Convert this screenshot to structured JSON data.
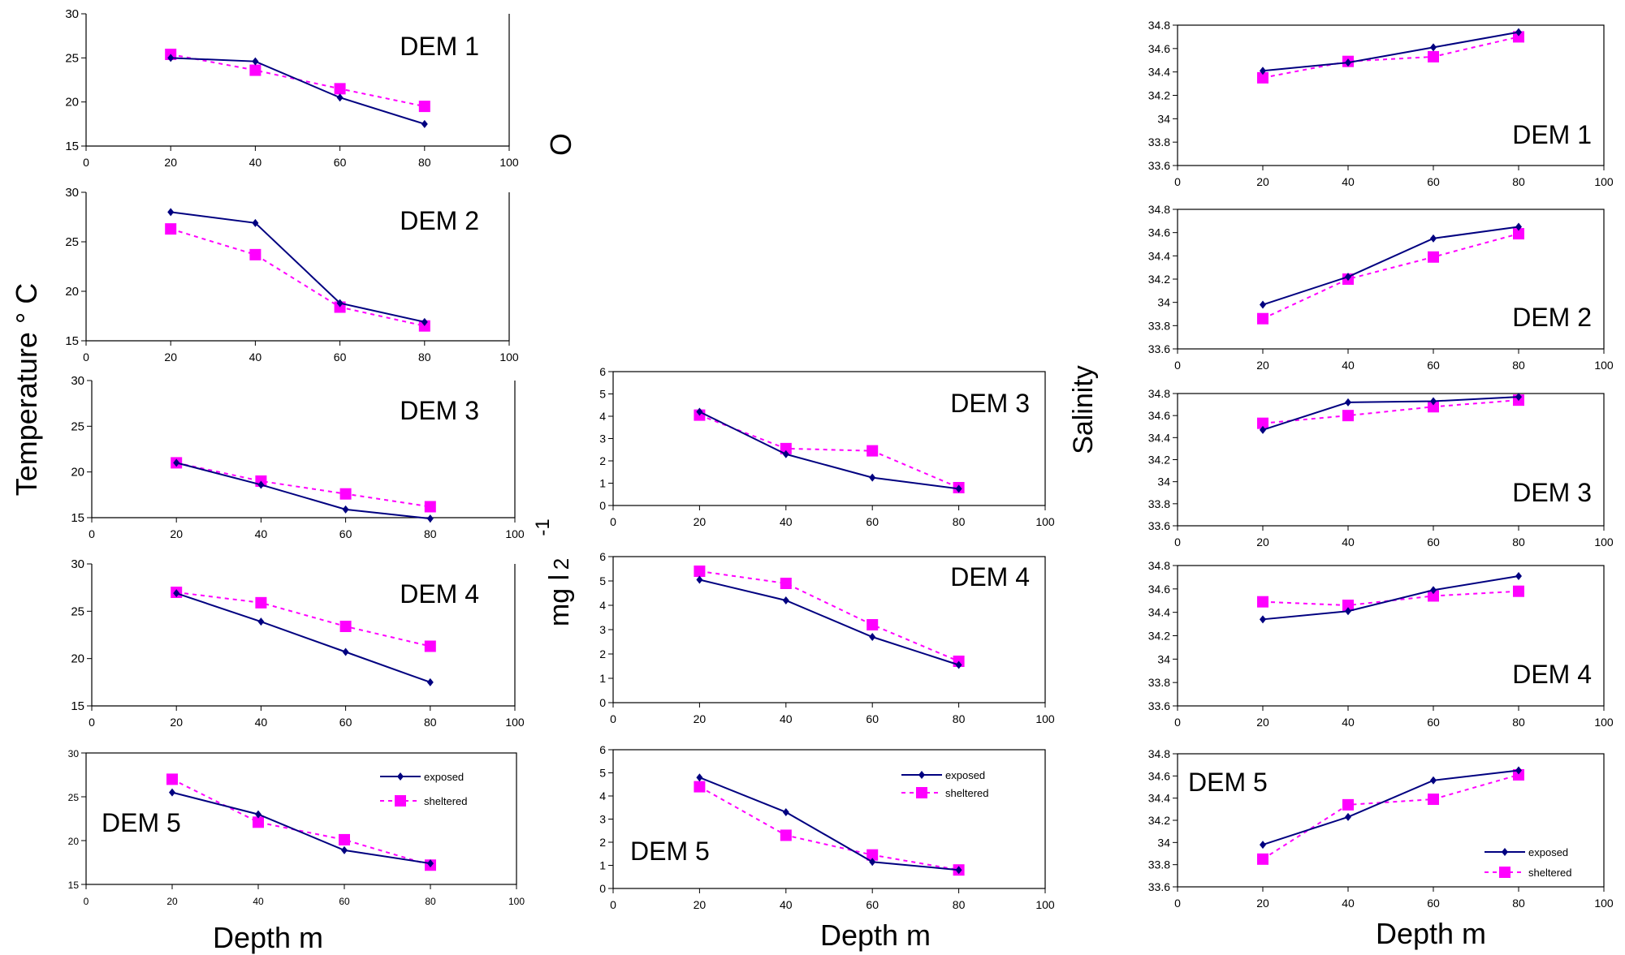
{
  "labels": {
    "temp_ylabel": "Temperature ° C",
    "oxygen_ylabel": "O",
    "oxygen_ylabel_2": "2",
    "oxygen_ylabel_unit": "mg l",
    "oxygen_ylabel_sup": "-1",
    "salinity_ylabel": "Salinity",
    "xlabel_temp": "Depth m",
    "xlabel_oxygen": "Depth m",
    "xlabel_salinity": "Depth m"
  },
  "colors": {
    "exposed": "#000080",
    "sheltered": "#ff00ff"
  },
  "chart_data": [
    {
      "id": "temp-dem1",
      "type": "line",
      "title": "DEM 1",
      "xlim": [
        0,
        100
      ],
      "ylim": [
        15,
        30
      ],
      "xticks": [
        "0",
        "20",
        "40",
        "60",
        "80",
        "100"
      ],
      "yticks": [
        "15",
        "20",
        "25",
        "30"
      ],
      "x": [
        20,
        40,
        60,
        80
      ],
      "series": [
        {
          "key": "exposed",
          "values": [
            25,
            24.6,
            20.5,
            17.5
          ]
        },
        {
          "key": "sheltered",
          "values": [
            25.4,
            23.6,
            21.5,
            19.5
          ]
        }
      ]
    },
    {
      "id": "temp-dem2",
      "type": "line",
      "title": "DEM 2",
      "xlim": [
        0,
        100
      ],
      "ylim": [
        15,
        30
      ],
      "xticks": [
        "0",
        "20",
        "40",
        "60",
        "80",
        "100"
      ],
      "yticks": [
        "15",
        "20",
        "25",
        "30"
      ],
      "x": [
        20,
        40,
        60,
        80
      ],
      "series": [
        {
          "key": "exposed",
          "values": [
            28,
            26.9,
            18.8,
            16.9
          ]
        },
        {
          "key": "sheltered",
          "values": [
            26.3,
            23.7,
            18.4,
            16.5
          ]
        }
      ]
    },
    {
      "id": "temp-dem3",
      "type": "line",
      "title": "DEM 3",
      "xlim": [
        0,
        100
      ],
      "ylim": [
        15,
        30
      ],
      "xticks": [
        "0",
        "20",
        "40",
        "60",
        "80",
        "100"
      ],
      "yticks": [
        "15",
        "20",
        "25",
        "30"
      ],
      "x": [
        20,
        40,
        60,
        80
      ],
      "series": [
        {
          "key": "exposed",
          "values": [
            21,
            18.6,
            15.9,
            14.9
          ]
        },
        {
          "key": "sheltered",
          "values": [
            21,
            19,
            17.6,
            16.2
          ]
        }
      ]
    },
    {
      "id": "temp-dem4",
      "type": "line",
      "title": "DEM 4",
      "xlim": [
        0,
        100
      ],
      "ylim": [
        15,
        30
      ],
      "xticks": [
        "0",
        "20",
        "40",
        "60",
        "80",
        "100"
      ],
      "yticks": [
        "15",
        "20",
        "25",
        "30"
      ],
      "x": [
        20,
        40,
        60,
        80
      ],
      "series": [
        {
          "key": "exposed",
          "values": [
            26.9,
            23.9,
            20.7,
            17.5
          ]
        },
        {
          "key": "sheltered",
          "values": [
            27,
            25.9,
            23.4,
            21.3
          ]
        }
      ]
    },
    {
      "id": "temp-dem5",
      "type": "line",
      "title": "DEM 5",
      "xlim": [
        0,
        100
      ],
      "ylim": [
        15,
        30
      ],
      "xticks": [
        "0",
        "20",
        "40",
        "60",
        "80",
        "100"
      ],
      "yticks": [
        "15",
        "20",
        "25",
        "30"
      ],
      "x": [
        20,
        40,
        60,
        80
      ],
      "legend": {
        "position": "top-right",
        "entries": [
          "exposed",
          "sheltered"
        ]
      },
      "series": [
        {
          "key": "exposed",
          "name": "exposed",
          "values": [
            25.5,
            23,
            18.9,
            17.4
          ]
        },
        {
          "key": "sheltered",
          "name": "sheltered",
          "values": [
            27,
            22.1,
            20.1,
            17.2
          ]
        }
      ]
    },
    {
      "id": "oxy-dem3",
      "type": "line",
      "title": "DEM 3",
      "xlim": [
        0,
        100
      ],
      "ylim": [
        0,
        6
      ],
      "xticks": [
        "0",
        "20",
        "40",
        "60",
        "80",
        "100"
      ],
      "yticks": [
        "0",
        "1",
        "2",
        "3",
        "4",
        "5",
        "6"
      ],
      "x": [
        20,
        40,
        60,
        80
      ],
      "series": [
        {
          "key": "exposed",
          "values": [
            4.2,
            2.3,
            1.25,
            0.75
          ]
        },
        {
          "key": "sheltered",
          "values": [
            4.05,
            2.55,
            2.45,
            0.8
          ]
        }
      ]
    },
    {
      "id": "oxy-dem4",
      "type": "line",
      "title": "DEM 4",
      "xlim": [
        0,
        100
      ],
      "ylim": [
        0,
        6
      ],
      "xticks": [
        "0",
        "20",
        "40",
        "60",
        "80",
        "100"
      ],
      "yticks": [
        "0",
        "1",
        "2",
        "3",
        "4",
        "5",
        "6"
      ],
      "x": [
        20,
        40,
        60,
        80
      ],
      "series": [
        {
          "key": "exposed",
          "values": [
            5.05,
            4.2,
            2.7,
            1.55
          ]
        },
        {
          "key": "sheltered",
          "values": [
            5.4,
            4.9,
            3.2,
            1.7
          ]
        }
      ]
    },
    {
      "id": "oxy-dem5",
      "type": "line",
      "title": "DEM 5",
      "xlim": [
        0,
        100
      ],
      "ylim": [
        0,
        6
      ],
      "xticks": [
        "0",
        "20",
        "40",
        "60",
        "80",
        "100"
      ],
      "yticks": [
        "0",
        "1",
        "2",
        "3",
        "4",
        "5",
        "6"
      ],
      "x": [
        20,
        40,
        60,
        80
      ],
      "legend": {
        "position": "top-right",
        "entries": [
          "exposed",
          "sheltered"
        ]
      },
      "series": [
        {
          "key": "exposed",
          "name": "exposed",
          "values": [
            4.8,
            3.3,
            1.15,
            0.8
          ]
        },
        {
          "key": "sheltered",
          "name": "sheltered",
          "values": [
            4.4,
            2.3,
            1.45,
            0.8
          ]
        }
      ]
    },
    {
      "id": "sal-dem1",
      "type": "line",
      "title": "DEM 1",
      "xlim": [
        0,
        100
      ],
      "ylim": [
        33.6,
        34.8
      ],
      "xticks": [
        "0",
        "20",
        "40",
        "60",
        "80",
        "100"
      ],
      "yticks": [
        "33.6",
        "33.8",
        "34",
        "34.2",
        "34.4",
        "34.6",
        "34.8"
      ],
      "x": [
        20,
        40,
        60,
        80
      ],
      "series": [
        {
          "key": "exposed",
          "values": [
            34.41,
            34.48,
            34.61,
            34.74
          ]
        },
        {
          "key": "sheltered",
          "values": [
            34.35,
            34.49,
            34.53,
            34.7
          ]
        }
      ]
    },
    {
      "id": "sal-dem2",
      "type": "line",
      "title": "DEM 2",
      "xlim": [
        0,
        100
      ],
      "ylim": [
        33.6,
        34.8
      ],
      "xticks": [
        "0",
        "20",
        "40",
        "60",
        "80",
        "100"
      ],
      "yticks": [
        "33.6",
        "33.8",
        "34",
        "34.2",
        "34.4",
        "34.6",
        "34.8"
      ],
      "x": [
        20,
        40,
        60,
        80
      ],
      "series": [
        {
          "key": "exposed",
          "values": [
            33.98,
            34.22,
            34.55,
            34.65
          ]
        },
        {
          "key": "sheltered",
          "values": [
            33.86,
            34.2,
            34.39,
            34.59
          ]
        }
      ]
    },
    {
      "id": "sal-dem3",
      "type": "line",
      "title": "DEM 3",
      "xlim": [
        0,
        100
      ],
      "ylim": [
        33.6,
        34.8
      ],
      "xticks": [
        "0",
        "20",
        "40",
        "60",
        "80",
        "100"
      ],
      "yticks": [
        "33.6",
        "33.8",
        "34",
        "34.2",
        "34.4",
        "34.6",
        "34.8"
      ],
      "x": [
        20,
        40,
        60,
        80
      ],
      "series": [
        {
          "key": "exposed",
          "values": [
            34.47,
            34.72,
            34.73,
            34.77
          ]
        },
        {
          "key": "sheltered",
          "values": [
            34.53,
            34.6,
            34.68,
            34.74
          ]
        }
      ]
    },
    {
      "id": "sal-dem4",
      "type": "line",
      "title": "DEM 4",
      "xlim": [
        0,
        100
      ],
      "ylim": [
        33.6,
        34.8
      ],
      "xticks": [
        "0",
        "20",
        "40",
        "60",
        "80",
        "100"
      ],
      "yticks": [
        "33.6",
        "33.8",
        "34",
        "34.2",
        "34.4",
        "34.6",
        "34.8"
      ],
      "x": [
        20,
        40,
        60,
        80
      ],
      "series": [
        {
          "key": "exposed",
          "values": [
            34.34,
            34.41,
            34.59,
            34.71
          ]
        },
        {
          "key": "sheltered",
          "values": [
            34.49,
            34.46,
            34.54,
            34.58
          ]
        }
      ]
    },
    {
      "id": "sal-dem5",
      "type": "line",
      "title": "DEM 5",
      "xlim": [
        0,
        100
      ],
      "ylim": [
        33.6,
        34.8
      ],
      "xticks": [
        "0",
        "20",
        "40",
        "60",
        "80",
        "100"
      ],
      "yticks": [
        "33.6",
        "33.8",
        "34",
        "34.2",
        "34.4",
        "34.6",
        "34.8"
      ],
      "x": [
        20,
        40,
        60,
        80
      ],
      "legend": {
        "position": "bottom-right",
        "entries": [
          "exposed",
          "sheltered"
        ]
      },
      "series": [
        {
          "key": "exposed",
          "name": "exposed",
          "values": [
            33.98,
            34.23,
            34.56,
            34.65
          ]
        },
        {
          "key": "sheltered",
          "name": "sheltered",
          "values": [
            33.85,
            34.34,
            34.39,
            34.61
          ]
        }
      ]
    }
  ]
}
